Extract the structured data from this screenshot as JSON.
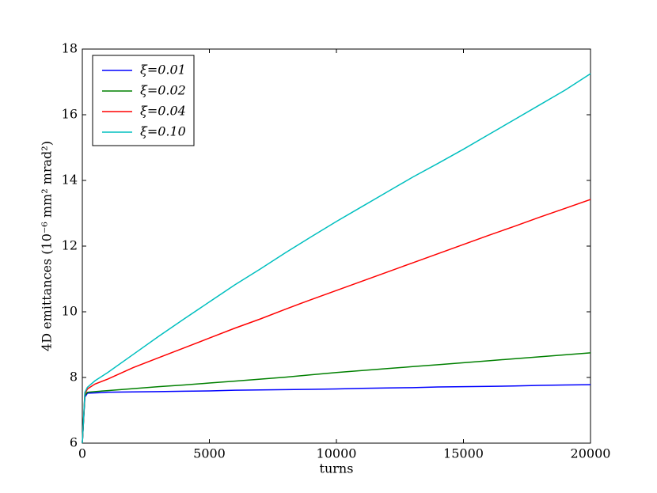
{
  "chart_data": {
    "type": "line",
    "xlabel": "turns",
    "ylabel": "4D emittances (10⁻⁶ mm² mrad²)",
    "x": [
      0,
      100,
      200,
      500,
      1000,
      2000,
      3000,
      4000,
      5000,
      6000,
      7000,
      8000,
      9000,
      10000,
      11000,
      12000,
      13000,
      14000,
      15000,
      16000,
      17000,
      18000,
      19000,
      20000
    ],
    "series": [
      {
        "name": "ξ=0.01",
        "color": "#0000ff",
        "values": [
          6.0,
          7.4,
          7.52,
          7.53,
          7.55,
          7.56,
          7.57,
          7.58,
          7.59,
          7.61,
          7.62,
          7.63,
          7.64,
          7.65,
          7.67,
          7.68,
          7.69,
          7.71,
          7.72,
          7.73,
          7.74,
          7.76,
          7.77,
          7.78
        ]
      },
      {
        "name": "ξ=0.02",
        "color": "#008000",
        "values": [
          6.0,
          7.45,
          7.55,
          7.57,
          7.6,
          7.66,
          7.72,
          7.77,
          7.83,
          7.89,
          7.95,
          8.01,
          8.08,
          8.15,
          8.21,
          8.27,
          8.33,
          8.39,
          8.45,
          8.51,
          8.57,
          8.63,
          8.69,
          8.75
        ]
      },
      {
        "name": "ξ=0.04",
        "color": "#ff0000",
        "values": [
          6.0,
          7.5,
          7.65,
          7.8,
          7.95,
          8.3,
          8.6,
          8.9,
          9.2,
          9.5,
          9.78,
          10.08,
          10.37,
          10.65,
          10.93,
          11.21,
          11.49,
          11.77,
          12.05,
          12.33,
          12.6,
          12.88,
          13.15,
          13.42
        ]
      },
      {
        "name": "ξ=0.10",
        "color": "#00bfbf",
        "values": [
          6.0,
          7.55,
          7.7,
          7.9,
          8.15,
          8.7,
          9.25,
          9.78,
          10.3,
          10.82,
          11.3,
          11.8,
          12.28,
          12.75,
          13.2,
          13.65,
          14.1,
          14.52,
          14.95,
          15.4,
          15.85,
          16.3,
          16.75,
          17.25
        ]
      }
    ],
    "xlim": [
      0,
      20000
    ],
    "xticks": [
      0,
      5000,
      10000,
      15000,
      20000
    ],
    "ylim": [
      6,
      18
    ],
    "yticks": [
      6,
      8,
      10,
      12,
      14,
      16,
      18
    ],
    "grid": false,
    "legend": "upper-left"
  }
}
